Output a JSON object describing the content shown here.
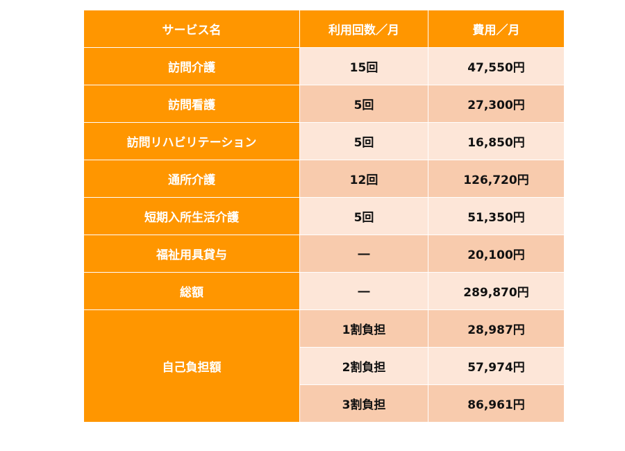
{
  "headers": {
    "service": "サービス名",
    "uses": "利用回数／月",
    "cost": "費用／月"
  },
  "rows": [
    {
      "service": "訪問介護",
      "uses": "15回",
      "cost": "47,550円"
    },
    {
      "service": "訪問看護",
      "uses": "5回",
      "cost": "27,300円"
    },
    {
      "service": "訪問リハビリテーション",
      "uses": "5回",
      "cost": "16,850円"
    },
    {
      "service": "通所介護",
      "uses": "12回",
      "cost": "126,720円"
    },
    {
      "service": "短期入所生活介護",
      "uses": "5回",
      "cost": "51,350円"
    },
    {
      "service": "福祉用具貸与",
      "uses": "―",
      "cost": "20,100円"
    },
    {
      "service": "総額",
      "uses": "―",
      "cost": "289,870円"
    }
  ],
  "copay": {
    "label": "自己負担額",
    "rows": [
      {
        "ratio": "1割負担",
        "cost": "28,987円"
      },
      {
        "ratio": "2割負担",
        "cost": "57,974円"
      },
      {
        "ratio": "3割負担",
        "cost": "86,961円"
      }
    ]
  },
  "colors": {
    "header_orange": "#ff9600",
    "cell_light": "#fde6d8",
    "cell_dark": "#f8cbad"
  }
}
